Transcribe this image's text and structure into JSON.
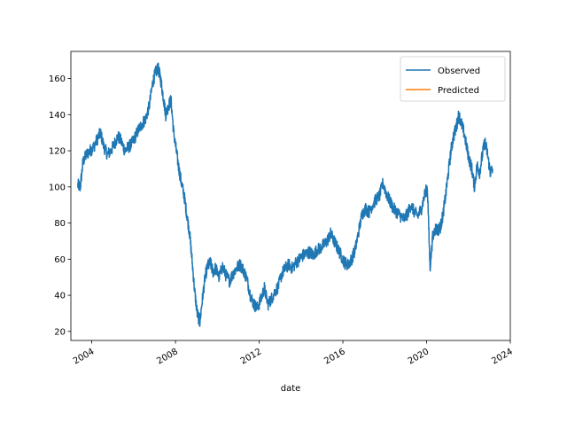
{
  "chart_data": {
    "type": "line",
    "title": "",
    "xlabel": "date",
    "ylabel": "",
    "x_type": "date",
    "xlim": [
      "2003-01-01",
      "2024-01-01"
    ],
    "ylim": [
      15,
      175
    ],
    "x_ticks": [
      2004,
      2008,
      2012,
      2016,
      2020,
      2024
    ],
    "x_tick_labels": [
      "2004",
      "2008",
      "2012",
      "2016",
      "2020",
      "2024"
    ],
    "y_ticks": [
      20,
      40,
      60,
      80,
      100,
      120,
      140,
      160
    ],
    "y_tick_labels": [
      "20",
      "40",
      "60",
      "80",
      "100",
      "120",
      "140",
      "160"
    ],
    "grid": false,
    "legend_position": "top-right",
    "colors": {
      "observed": "#1f77b4",
      "predicted": "#ff7f0e"
    },
    "series": [
      {
        "name": "Observed",
        "color": "#1f77b4",
        "x": [
          "2003-05-01",
          "2003-06-15",
          "2003-08-01",
          "2003-10-01",
          "2003-12-01",
          "2004-02-01",
          "2004-04-01",
          "2004-06-01",
          "2004-08-01",
          "2004-10-01",
          "2004-12-01",
          "2005-02-01",
          "2005-04-01",
          "2005-06-01",
          "2005-08-01",
          "2005-10-01",
          "2005-12-01",
          "2006-02-01",
          "2006-04-01",
          "2006-06-01",
          "2006-08-01",
          "2006-10-01",
          "2006-12-01",
          "2007-01-15",
          "2007-03-01",
          "2007-04-15",
          "2007-06-01",
          "2007-07-15",
          "2007-09-01",
          "2007-10-15",
          "2007-12-01",
          "2008-01-15",
          "2008-03-01",
          "2008-04-15",
          "2008-06-01",
          "2008-07-15",
          "2008-09-01",
          "2008-10-15",
          "2008-12-01",
          "2009-01-15",
          "2009-03-01",
          "2009-04-15",
          "2009-06-01",
          "2009-07-15",
          "2009-09-01",
          "2009-10-15",
          "2009-12-01",
          "2010-02-01",
          "2010-04-01",
          "2010-06-01",
          "2010-08-01",
          "2010-10-01",
          "2010-12-01",
          "2011-02-01",
          "2011-04-01",
          "2011-06-01",
          "2011-08-01",
          "2011-10-01",
          "2011-12-01",
          "2012-02-01",
          "2012-04-01",
          "2012-06-01",
          "2012-08-01",
          "2012-10-01",
          "2012-12-01",
          "2013-02-01",
          "2013-04-01",
          "2013-06-01",
          "2013-08-01",
          "2013-10-01",
          "2013-12-01",
          "2014-02-01",
          "2014-04-01",
          "2014-06-01",
          "2014-08-01",
          "2014-10-01",
          "2014-12-01",
          "2015-02-01",
          "2015-04-01",
          "2015-06-01",
          "2015-08-01",
          "2015-10-01",
          "2015-12-01",
          "2016-02-01",
          "2016-04-01",
          "2016-06-01",
          "2016-08-01",
          "2016-10-01",
          "2016-12-01",
          "2017-02-01",
          "2017-04-01",
          "2017-06-01",
          "2017-08-01",
          "2017-10-01",
          "2017-12-01",
          "2018-02-01",
          "2018-04-01",
          "2018-06-01",
          "2018-08-01",
          "2018-10-01",
          "2018-12-01",
          "2019-02-01",
          "2019-04-01",
          "2019-06-01",
          "2019-08-01",
          "2019-10-01",
          "2019-12-01",
          "2020-01-15",
          "2020-03-01",
          "2020-04-15",
          "2020-06-01",
          "2020-07-15",
          "2020-09-01",
          "2020-10-15",
          "2020-12-01",
          "2021-01-15",
          "2021-03-01",
          "2021-04-15",
          "2021-06-01",
          "2021-07-15",
          "2021-09-01",
          "2021-10-15",
          "2021-12-01",
          "2022-01-15",
          "2022-03-01",
          "2022-04-15",
          "2022-06-01",
          "2022-07-15",
          "2022-09-01",
          "2022-10-15",
          "2022-12-01",
          "2023-01-15",
          "2023-03-01"
        ],
        "y": [
          101,
          100,
          114,
          118,
          120,
          122,
          126,
          130,
          122,
          118,
          120,
          124,
          128,
          125,
          120,
          122,
          124,
          128,
          132,
          135,
          138,
          145,
          158,
          163,
          166,
          160,
          150,
          140,
          145,
          148,
          130,
          120,
          110,
          102,
          95,
          85,
          75,
          60,
          42,
          30,
          25,
          38,
          50,
          56,
          58,
          53,
          55,
          50,
          56,
          51,
          48,
          52,
          55,
          57,
          54,
          49,
          40,
          35,
          33,
          38,
          44,
          35,
          38,
          42,
          45,
          52,
          55,
          57,
          55,
          58,
          60,
          62,
          63,
          64,
          62,
          65,
          66,
          68,
          70,
          74,
          70,
          66,
          62,
          58,
          57,
          60,
          65,
          75,
          85,
          88,
          86,
          90,
          93,
          95,
          102,
          96,
          92,
          88,
          86,
          84,
          82,
          85,
          90,
          86,
          84,
          88,
          96,
          100,
          55,
          72,
          77,
          76,
          78,
          85,
          96,
          108,
          120,
          128,
          133,
          140,
          135,
          130,
          122,
          115,
          110,
          100,
          112,
          108,
          118,
          125,
          118,
          108,
          110
        ]
      },
      {
        "name": "Predicted",
        "color": "#ff7f0e",
        "x": [],
        "y": []
      }
    ]
  }
}
